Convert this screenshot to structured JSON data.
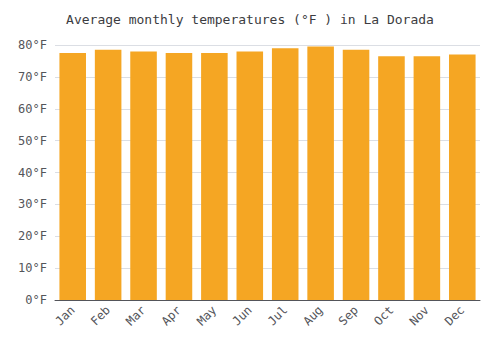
{
  "chart_data": {
    "type": "bar",
    "title": "Average monthly temperatures (°F ) in La Dorada",
    "categories": [
      "Jan",
      "Feb",
      "Mar",
      "Apr",
      "May",
      "Jun",
      "Jul",
      "Aug",
      "Sep",
      "Oct",
      "Nov",
      "Dec"
    ],
    "values": [
      77.5,
      78.5,
      78.0,
      77.5,
      77.5,
      78.0,
      79.0,
      79.5,
      78.5,
      76.5,
      76.5,
      77.0
    ],
    "color": "#F5A623",
    "ylim": [
      0,
      80
    ],
    "yticks": [
      {
        "value": 0,
        "label": "0°F"
      },
      {
        "value": 10,
        "label": "10°F"
      },
      {
        "value": 20,
        "label": "20°F"
      },
      {
        "value": 30,
        "label": "30°F"
      },
      {
        "value": 40,
        "label": "40°F"
      },
      {
        "value": 50,
        "label": "50°F"
      },
      {
        "value": 60,
        "label": "60°F"
      },
      {
        "value": 70,
        "label": "70°F"
      },
      {
        "value": 80,
        "label": "80°F"
      }
    ],
    "grid": true
  }
}
